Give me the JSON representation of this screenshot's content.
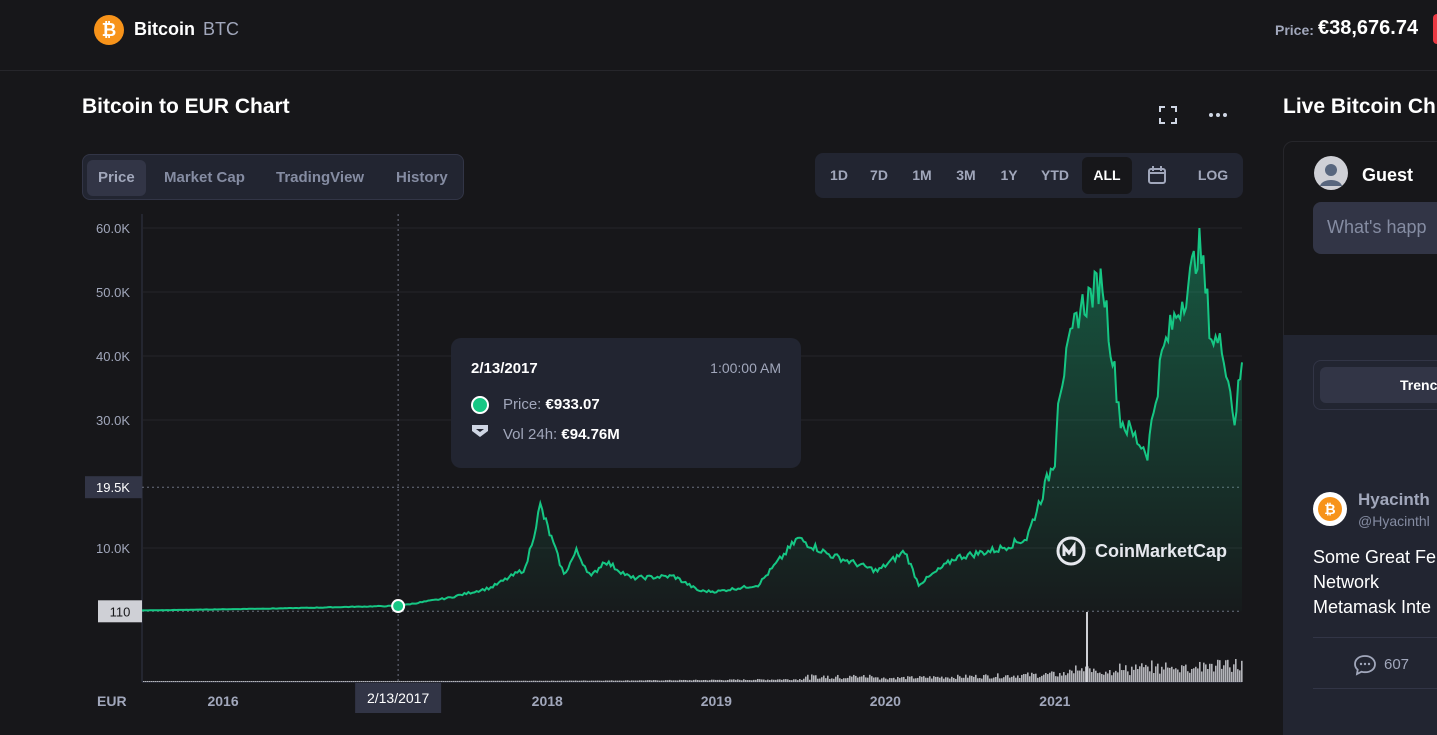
{
  "header": {
    "coin_name": "Bitcoin",
    "coin_symbol": "BTC",
    "price_label": "Price:",
    "price_value": "€38,676.74",
    "logo_icon": "bitcoin-icon"
  },
  "chart_section": {
    "title": "Bitcoin to EUR Chart",
    "fullscreen_icon": "expand-icon",
    "more_icon": "more-horizontal-icon",
    "tabs": [
      {
        "label": "Price",
        "active": true
      },
      {
        "label": "Market Cap",
        "active": false
      },
      {
        "label": "TradingView",
        "active": false
      },
      {
        "label": "History",
        "active": false
      }
    ],
    "ranges": [
      {
        "label": "1D",
        "active": false
      },
      {
        "label": "7D",
        "active": false
      },
      {
        "label": "1M",
        "active": false
      },
      {
        "label": "3M",
        "active": false
      },
      {
        "label": "1Y",
        "active": false
      },
      {
        "label": "YTD",
        "active": false
      },
      {
        "label": "ALL",
        "active": true
      },
      {
        "label": "LOG",
        "active": false
      }
    ],
    "calendar_icon": "calendar-icon",
    "tooltip": {
      "date": "2/13/2017",
      "time": "1:00:00 AM",
      "price_label": "Price:",
      "price_value": "€933.07",
      "vol_label": "Vol 24h:",
      "vol_value": "€94.76M"
    },
    "watermark": "CoinMarketCap"
  },
  "chart_data": {
    "type": "area",
    "series": [
      {
        "x": [
          "2015-08-10",
          "2016-01-01",
          "2016-07-01",
          "2017-01-01",
          "2017-02-13",
          "2017-06-01",
          "2017-09-01",
          "2017-11-15",
          "2017-12-17",
          "2018-01-10",
          "2018-02-06",
          "2018-03-05",
          "2018-04-06",
          "2018-05-05",
          "2018-07-01",
          "2018-10-01",
          "2018-11-25",
          "2019-01-01",
          "2019-04-01",
          "2019-06-26",
          "2019-09-01",
          "2019-12-15",
          "2020-02-12",
          "2020-03-13",
          "2020-06-01",
          "2020-09-01",
          "2020-11-01",
          "2021-01-01",
          "2021-01-08",
          "2021-02-21",
          "2021-04-14",
          "2021-05-23",
          "2021-07-20",
          "2021-08-20",
          "2021-09-07",
          "2021-10-20",
          "2021-11-09",
          "2021-12-05",
          "2022-01-01",
          "2022-01-24",
          "2022-02-09"
        ],
        "values": [
          240,
          390,
          600,
          900,
          933.07,
          2200,
          3800,
          6800,
          16500,
          11500,
          5800,
          9500,
          5500,
          8000,
          5300,
          5600,
          3300,
          3200,
          4200,
          11500,
          9000,
          6400,
          9500,
          4300,
          8500,
          9800,
          11500,
          24000,
          34000,
          47000,
          52000,
          30000,
          25000,
          40000,
          44000,
          52000,
          58000,
          43000,
          41000,
          30000,
          39000
        ]
      }
    ],
    "y_axis_ticks": [
      "60.0K",
      "50.0K",
      "40.0K",
      "30.0K",
      "10.0K"
    ],
    "y_markers": [
      "19.5K",
      "110"
    ],
    "x_axis_ticks": [
      "2016",
      "2017",
      "2018",
      "2019",
      "2020",
      "2021"
    ],
    "x_cursor_label": "2/13/2017",
    "currency_label": "EUR",
    "ylim": [
      0,
      62000
    ],
    "grid": true
  },
  "right_panel": {
    "title": "Live Bitcoin Ch",
    "user_name": "Guest",
    "compose_placeholder": "What's happ",
    "trending_label": "Trenc",
    "post": {
      "author": "Hyacinth",
      "handle": "@Hyacinthl",
      "text": "Some Great Fe\nNetwork\nMetamask Inte",
      "comments": "607"
    }
  }
}
